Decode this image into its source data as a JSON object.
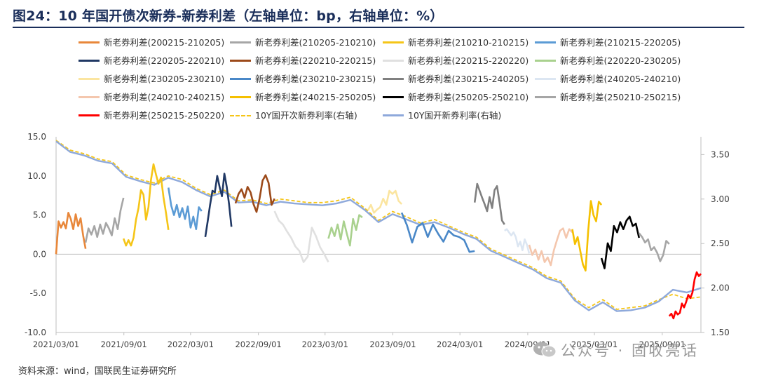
{
  "title": "图24：10 年国开债次新券-新券利差（左轴单位：bp，右轴单位：%）",
  "source": "资料来源：wind，国联民生证券研究所",
  "watermark": "公众号 · 固收亮话",
  "chart_data": {
    "type": "line",
    "x_ticks": [
      "2021/03/01",
      "2021/09/01",
      "2022/03/01",
      "2022/09/01",
      "2023/03/01",
      "2023/09/01",
      "2024/03/01",
      "2024/09/01",
      "2025/03/01",
      "2025/09/01"
    ],
    "x_range": [
      "2021/03/01",
      "2025/12/15"
    ],
    "y_left": {
      "range": [
        -10,
        15
      ],
      "ticks": [
        "-10.0",
        "-5.0",
        "0.0",
        "5.0",
        "10.0",
        "15.0"
      ]
    },
    "y_right": {
      "range": [
        1.5,
        3.7
      ],
      "ticks": [
        "1.50",
        "2.00",
        "2.50",
        "3.00",
        "3.50"
      ]
    },
    "spread_series": [
      {
        "name": "新老券利差(200215-210205)",
        "color": "#e8873a",
        "start": "2021/03/01",
        "end": "2021/05/20",
        "values": [
          0.0,
          4.2,
          3.4,
          4.1,
          3.3,
          5.3,
          4.5,
          3.2,
          5.1,
          3.6,
          4.6,
          2.4,
          0.7
        ]
      },
      {
        "name": "新老券利差(210205-210210)",
        "color": "#a6a6a6",
        "start": "2021/05/20",
        "end": "2021/08/31",
        "values": [
          1.5,
          3.3,
          2.5,
          3.6,
          2.2,
          3.8,
          2.6,
          4.0,
          3.3,
          2.4,
          4.6,
          3.2,
          5.6,
          7.2
        ]
      },
      {
        "name": "新老券利差(210210-210215)",
        "color": "#f5c518",
        "start": "2021/08/31",
        "end": "2021/12/31",
        "values": [
          2.0,
          1.1,
          1.8,
          1.1,
          2.1,
          4.4,
          5.9,
          8.2,
          7.6,
          4.4,
          6.0,
          9.5,
          11.5,
          10.2,
          9.0,
          9.8,
          7.3,
          5.3,
          3.1
        ]
      },
      {
        "name": "新老券利差(210215-220205)",
        "color": "#5b9bd5",
        "start": "2021/12/31",
        "end": "2022/03/31",
        "values": [
          8.5,
          6.2,
          5.0,
          6.3,
          4.7,
          5.9,
          4.5,
          6.1,
          3.4,
          4.8,
          3.2,
          6.0,
          5.5
        ]
      },
      {
        "name": "新老券利差(220205-220210)",
        "color": "#203864",
        "start": "2022/04/10",
        "end": "2022/06/20",
        "values": [
          2.2,
          4.2,
          6.3,
          8.1,
          7.9,
          10.0,
          8.6,
          7.4,
          10.3,
          8.6,
          6.4,
          3.5
        ]
      },
      {
        "name": "新老券利差(220210-220215)",
        "color": "#9c4a1a",
        "start": "2022/07/01",
        "end": "2022/10/15",
        "values": [
          6.5,
          7.7,
          8.3,
          7.2,
          8.6,
          7.9,
          6.4,
          5.4,
          7.1,
          9.4,
          10.1,
          9.1,
          6.3,
          7.1
        ]
      },
      {
        "name": "新老券利差(220215-220220)",
        "color": "#e0e0e0",
        "start": "2022/10/15",
        "end": "2023/03/10",
        "values": [
          5.5,
          4.3,
          3.8,
          2.9,
          2.1,
          1.0,
          0.4,
          -1.0,
          -0.3,
          3.4,
          2.3,
          0.9,
          0.0,
          -1.0
        ]
      },
      {
        "name": "新老券利差(220220-230205)",
        "color": "#a9d18e",
        "start": "2023/03/10",
        "end": "2023/06/10",
        "values": [
          2.0,
          3.4,
          2.3,
          3.8,
          1.9,
          4.2,
          2.6,
          1.1,
          4.5,
          3.1,
          5.0,
          4.7
        ]
      },
      {
        "name": "新老券利差(230205-230210)",
        "color": "#fbe5a0",
        "start": "2023/06/25",
        "end": "2023/09/25",
        "values": [
          5.6,
          6.3,
          5.3,
          5.7,
          6.0,
          7.1,
          6.3,
          8.1,
          7.7,
          8.1,
          6.8,
          6.4
        ]
      },
      {
        "name": "新老券利差(230210-230215)",
        "color": "#4a88c8",
        "start": "2023/09/25",
        "end": "2024/04/10",
        "values": [
          5.3,
          3.7,
          1.5,
          3.5,
          4.0,
          2.2,
          3.8,
          2.6,
          1.6,
          3.0,
          2.4,
          2.2,
          1.8,
          0.3,
          0.4
        ]
      },
      {
        "name": "新老券利差(230215-240205)",
        "color": "#808080",
        "start": "2024/04/10",
        "end": "2024/06/30",
        "values": [
          6.6,
          9.0,
          8.1,
          7.2,
          6.4,
          5.5,
          7.3,
          5.9,
          8.2,
          8.7,
          6.6,
          4.3,
          3.8
        ]
      },
      {
        "name": "新老券利差(240205-240210)",
        "color": "#dce6f2",
        "start": "2024/06/30",
        "end": "2024/09/05",
        "values": [
          3.0,
          3.2,
          2.8,
          2.4,
          2.8,
          2.2,
          1.0,
          1.6,
          0.5,
          1.9,
          1.2,
          0.1
        ]
      },
      {
        "name": "新老券利差(240210-240215)",
        "color": "#f4c7ae",
        "start": "2024/09/05",
        "end": "2024/12/31",
        "values": [
          1.2,
          -0.1,
          0.6,
          -0.7,
          0.4,
          -1.0,
          -0.4,
          -1.4,
          0.5,
          1.8,
          3.0,
          3.3,
          2.1,
          3.2,
          2.8
        ]
      },
      {
        "name": "新老券利差(240215-250205)",
        "color": "#f5c000",
        "start": "2024/12/31",
        "end": "2025/03/20",
        "values": [
          3.2,
          1.3,
          2.2,
          0.4,
          -1.3,
          -2.1,
          3.0,
          6.8,
          5.0,
          4.2,
          6.7,
          6.3
        ]
      },
      {
        "name": "新老券利差(250205-250210)",
        "color": "#000000",
        "start": "2025/03/20",
        "end": "2025/06/30",
        "values": [
          -0.5,
          -1.8,
          1.4,
          0.4,
          3.6,
          2.8,
          4.1,
          3.2,
          4.3,
          4.8,
          3.6,
          3.9,
          2.1
        ]
      },
      {
        "name": "新老券利差(250210-250215)",
        "color": "#a6a6a6",
        "start": "2025/06/30",
        "end": "2025/09/20",
        "values": [
          2.7,
          2.2,
          1.5,
          1.9,
          0.5,
          0.9,
          0.2,
          -0.9,
          -0.1,
          1.7,
          1.3
        ]
      },
      {
        "name": "新老券利差(250215-250220)",
        "color": "#ff0000",
        "start": "2025/09/20",
        "end": "2025/12/15",
        "values": [
          -7.9,
          -7.6,
          -8.2,
          -7.3,
          -7.7,
          -7.5,
          -6.3,
          -6.8,
          -6.1,
          -5.2,
          -5.6,
          -4.9,
          -3.2,
          -2.3,
          -2.8,
          -2.5
        ]
      }
    ],
    "rate_series": [
      {
        "name": "10Y国开次新券利率(右轴)",
        "color": "#f5c518",
        "dash": true,
        "axis": "right",
        "start": "2021/03/01",
        "end": "2025/12/15",
        "values": [
          3.66,
          3.55,
          3.51,
          3.45,
          3.42,
          3.27,
          3.22,
          3.18,
          3.26,
          3.22,
          3.12,
          3.05,
          3.1,
          2.98,
          2.99,
          2.95,
          3.0,
          2.98,
          2.96,
          2.96,
          2.98,
          3.02,
          2.9,
          2.76,
          2.86,
          2.8,
          2.73,
          2.77,
          2.7,
          2.63,
          2.57,
          2.44,
          2.37,
          2.3,
          2.23,
          2.13,
          2.08,
          1.88,
          1.78,
          1.87,
          1.76,
          1.78,
          1.8,
          1.87,
          1.93,
          1.88,
          1.9
        ]
      },
      {
        "name": "10Y国开新券利率(右轴)",
        "color": "#8ea9db",
        "dash": false,
        "axis": "right",
        "start": "2021/03/01",
        "end": "2025/12/15",
        "values": [
          3.65,
          3.53,
          3.49,
          3.43,
          3.4,
          3.25,
          3.2,
          3.16,
          3.24,
          3.19,
          3.1,
          3.03,
          3.08,
          2.96,
          2.97,
          2.93,
          2.97,
          2.95,
          2.94,
          2.93,
          2.95,
          2.99,
          2.88,
          2.74,
          2.83,
          2.77,
          2.71,
          2.74,
          2.68,
          2.61,
          2.55,
          2.42,
          2.35,
          2.28,
          2.21,
          2.11,
          2.06,
          1.86,
          1.75,
          1.84,
          1.74,
          1.75,
          1.78,
          1.85,
          1.98,
          1.95,
          2.0
        ]
      }
    ]
  }
}
